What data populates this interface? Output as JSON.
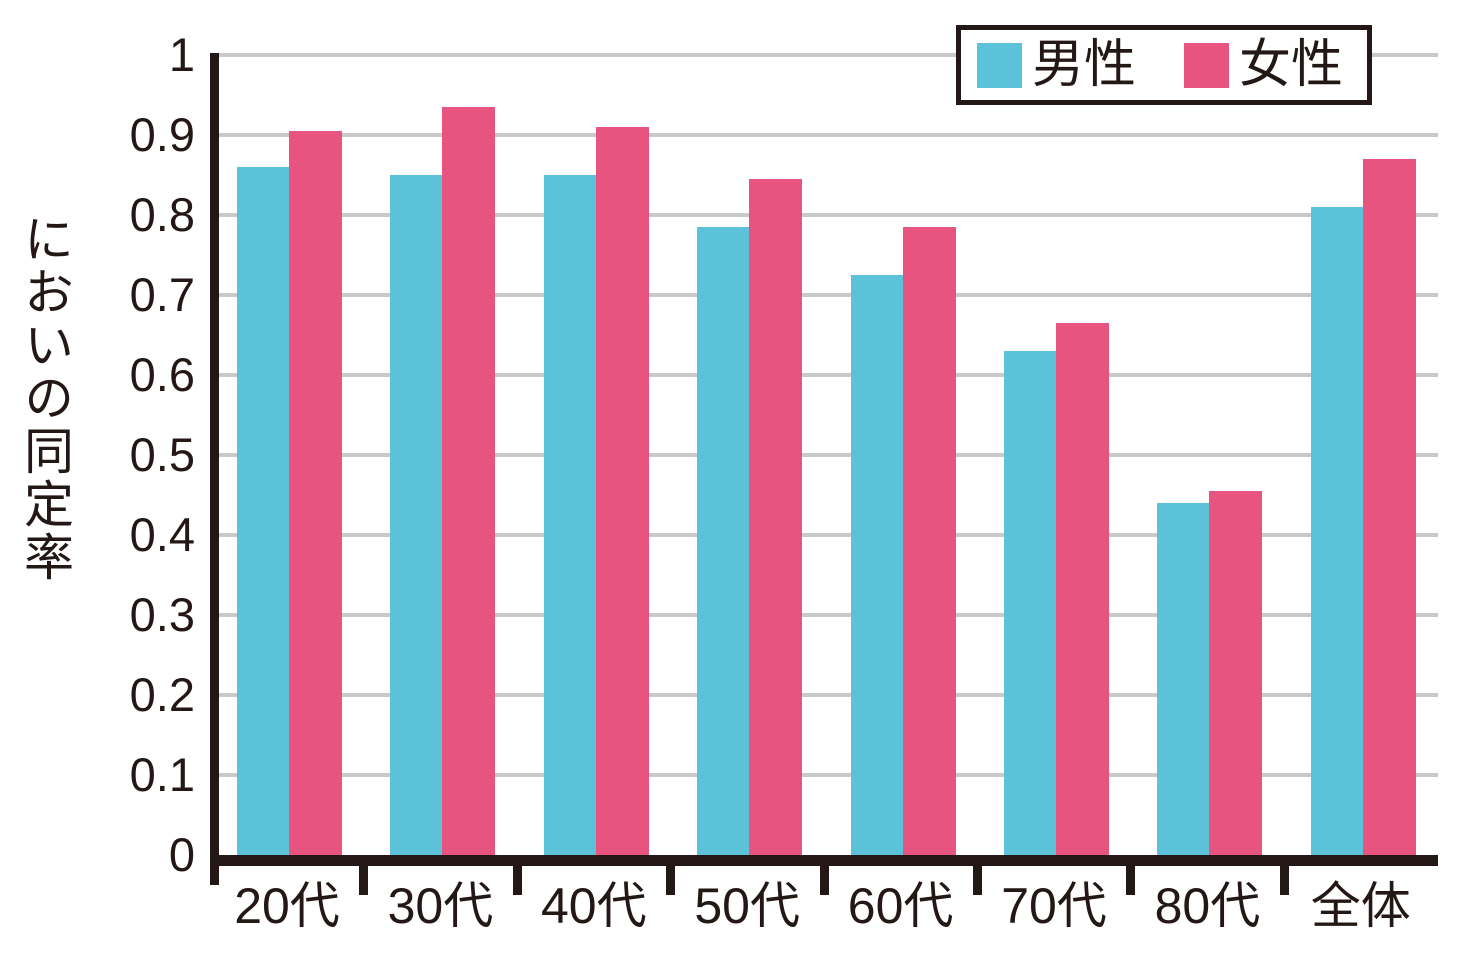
{
  "chart_data": {
    "type": "bar",
    "title": "",
    "xlabel": "",
    "ylabel": "においの同定率",
    "categories": [
      "20代",
      "30代",
      "40代",
      "50代",
      "60代",
      "70代",
      "80代",
      "全体"
    ],
    "series": [
      {
        "name": "男性",
        "color": "#5CC2D9",
        "values": [
          0.86,
          0.85,
          0.85,
          0.785,
          0.725,
          0.63,
          0.44,
          0.81
        ]
      },
      {
        "name": "女性",
        "color": "#E85480",
        "values": [
          0.905,
          0.935,
          0.91,
          0.845,
          0.785,
          0.665,
          0.455,
          0.87
        ]
      }
    ],
    "ylim": [
      0,
      1
    ],
    "yticks": [
      0,
      0.1,
      0.2,
      0.3,
      0.4,
      0.5,
      0.6,
      0.7,
      0.8,
      0.9,
      1
    ],
    "ytick_labels": [
      "0",
      "0.1",
      "0.2",
      "0.3",
      "0.4",
      "0.5",
      "0.6",
      "0.7",
      "0.8",
      "0.9",
      "1"
    ],
    "grid": true,
    "legend_position": "top-right",
    "colors": {
      "axis": "#231815",
      "gridline": "#C9C9C9",
      "male_bar": "#5CC2D9",
      "female_bar": "#E85480",
      "background": "#FFFFFF"
    }
  }
}
